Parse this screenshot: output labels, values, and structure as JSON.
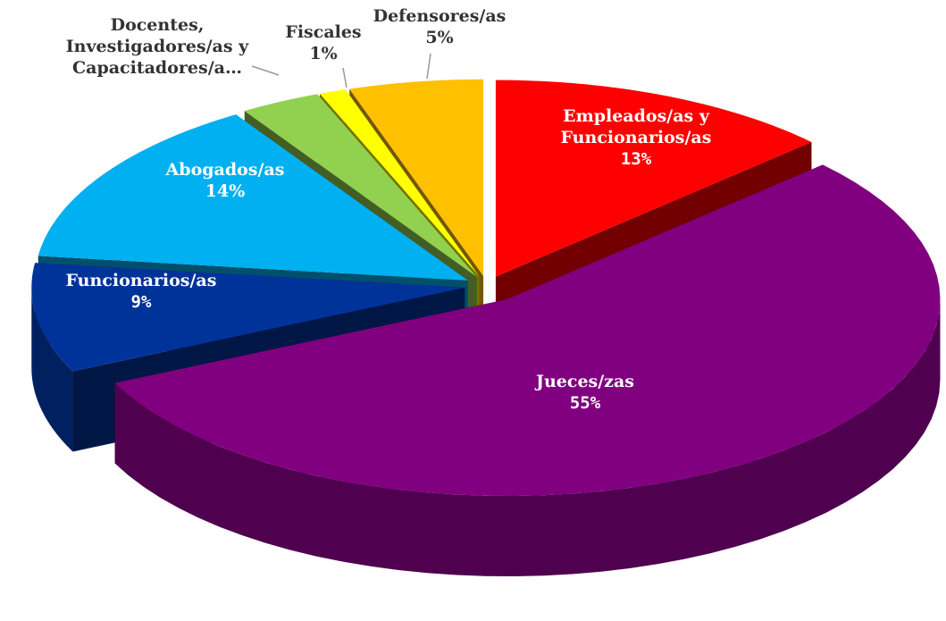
{
  "chart_data": {
    "type": "pie",
    "categories": [
      "Empleados/as y Funcionarios/as",
      "Jueces/zas",
      "Funcionarios/as",
      "Abogados/as",
      "Docentes, Investigadores/as y Capacitadores/a…",
      "Fiscales",
      "Defensores/as"
    ],
    "values": [
      13,
      55,
      9,
      14,
      3,
      1,
      5
    ],
    "value_labels": [
      "13%",
      "55%",
      "9%",
      "14%",
      null,
      "1%",
      "5%"
    ],
    "colors": [
      "#ff0000",
      "#800080",
      "#003399",
      "#00b0f0",
      "#92d050",
      "#ffff00",
      "#ffc000"
    ],
    "three_d": true,
    "exploded": true
  }
}
